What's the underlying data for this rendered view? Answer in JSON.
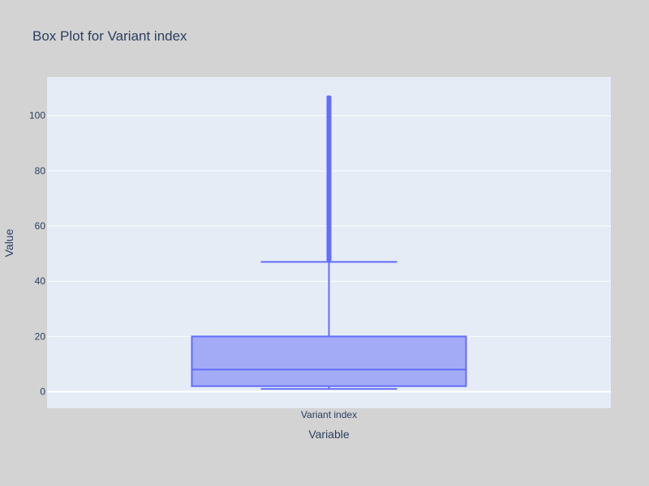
{
  "chart_data": {
    "type": "box",
    "title": "Box Plot for Variant index",
    "xlabel": "Variable",
    "ylabel": "Value",
    "categories": [
      "Variant index"
    ],
    "ylim": [
      -6,
      114
    ],
    "yticks": [
      0,
      20,
      40,
      60,
      80,
      100
    ],
    "grid": true,
    "box": {
      "category": "Variant index",
      "min": 1,
      "q1": 2,
      "median": 8,
      "q3": 20,
      "upper_fence": 47,
      "outliers_range": [
        47,
        107
      ]
    },
    "colors": {
      "plot_background": "#e5ecf6",
      "page_background": "#d3d3d3",
      "box_fill": "#a3abf6",
      "box_line": "#636efa",
      "text": "#2a3f5f",
      "grid": "#ffffff"
    }
  }
}
